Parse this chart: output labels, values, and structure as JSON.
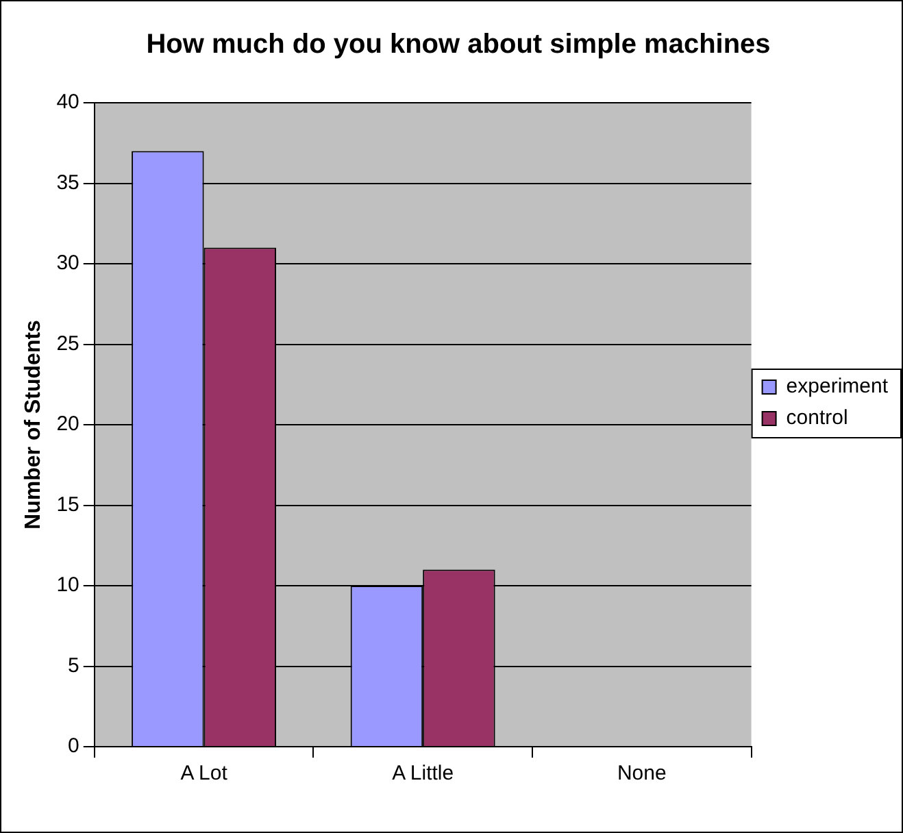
{
  "chart_data": {
    "type": "bar",
    "title": "How much do you know about simple machines",
    "ylabel": "Number of Students",
    "categories": [
      "A Lot",
      "A Little",
      "None"
    ],
    "series": [
      {
        "name": "experiment",
        "color": "#9999ff",
        "values": [
          37,
          10,
          0
        ]
      },
      {
        "name": "control",
        "color": "#993366",
        "values": [
          31,
          11,
          0
        ]
      }
    ],
    "ylim": [
      0,
      40
    ],
    "yticks": [
      0,
      5,
      10,
      15,
      20,
      25,
      30,
      35,
      40
    ],
    "grid": "y",
    "legend": "right"
  }
}
